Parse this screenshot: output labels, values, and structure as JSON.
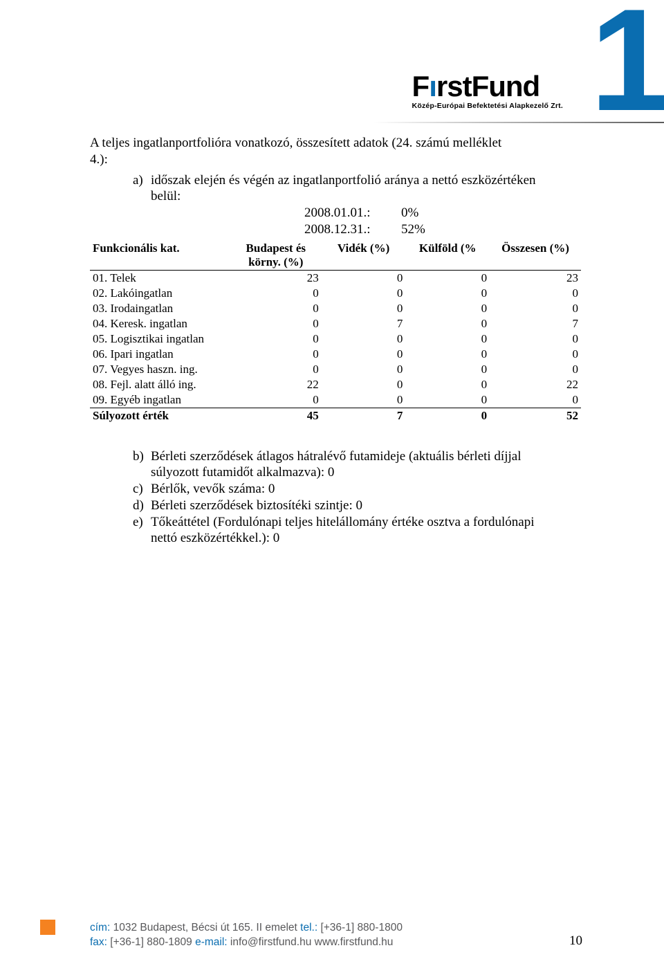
{
  "title": {
    "line1": "A teljes ingatlanportfolióra vonatkozó, összesített adatok (24. számú melléklet",
    "line2": "4.):"
  },
  "a_item": {
    "marker": "a)",
    "line1": "időszak elején és végén az ingatlanportfolió aránya a nettó eszközértéken",
    "line2": "belül:"
  },
  "a_values": [
    {
      "label": "2008.01.01.:",
      "val": "0%"
    },
    {
      "label": "2008.12.31.:",
      "val": "52%"
    }
  ],
  "table": {
    "headers": {
      "cat": "Funkcionális kat.",
      "bp1": "Budapest és",
      "bp2": "körny. (%)",
      "videk": "Vidék (%)",
      "kulfold": "Külföld (%",
      "ossz": "Összesen (%)"
    },
    "rows": [
      {
        "label": "01. Telek",
        "v": [
          "23",
          "0",
          "0",
          "23"
        ]
      },
      {
        "label": "02. Lakóingatlan",
        "v": [
          "0",
          "0",
          "0",
          "0"
        ]
      },
      {
        "label": "03. Irodaingatlan",
        "v": [
          "0",
          "0",
          "0",
          "0"
        ]
      },
      {
        "label": "04. Keresk. ingatlan",
        "v": [
          "0",
          "7",
          "0",
          "7"
        ]
      },
      {
        "label": "05. Logisztikai ingatlan",
        "v": [
          "0",
          "0",
          "0",
          "0"
        ]
      },
      {
        "label": "06. Ipari ingatlan",
        "v": [
          "0",
          "0",
          "0",
          "0"
        ]
      },
      {
        "label": "07. Vegyes haszn. ing.",
        "v": [
          "0",
          "0",
          "0",
          "0"
        ]
      },
      {
        "label": "08. Fejl. alatt álló ing.",
        "v": [
          "22",
          "0",
          "0",
          "22"
        ]
      },
      {
        "label": "09. Egyéb ingatlan",
        "v": [
          "0",
          "0",
          "0",
          "0"
        ]
      }
    ],
    "total": {
      "label": "Súlyozott érték",
      "v": [
        "45",
        "7",
        "0",
        "52"
      ]
    }
  },
  "b_list": [
    {
      "marker": "b)",
      "lines": [
        "Bérleti szerződések átlagos hátralévő futamideje (aktuális bérleti díjjal",
        "súlyozott futamidőt alkalmazva): 0"
      ]
    },
    {
      "marker": "c)",
      "lines": [
        "Bérlők, vevők száma: 0"
      ]
    },
    {
      "marker": "d)",
      "lines": [
        "Bérleti szerződések biztosítéki szintje: 0"
      ]
    },
    {
      "marker": "e)",
      "lines": [
        "Tőkeáttétel (Fordulónapi teljes hitelállomány értéke osztva a fordulónapi",
        "nettó eszközértékkel.): 0"
      ]
    }
  ],
  "logo": {
    "main_f": "F",
    "main_i": "ı",
    "main_rst": "rst",
    "main_fund": "Fund",
    "sub": "Közép-Európai Befektetési Alapkezelő Zrt."
  },
  "footer": {
    "line1_label": "cím:",
    "line1_addr": " 1032 Budapest, Bécsi út 165. II emelet ",
    "line1_tel_label": "tel.:",
    "line1_tel": " [+36-1] 880-1800",
    "line2_fax_label": "fax:",
    "line2_fax": " [+36-1] 880-1809 ",
    "line2_email_label": "e-mail:",
    "line2_email": " info@firstfund.hu www.firstfund.hu",
    "pagenum": "10"
  },
  "colors": {
    "blue": "#0a6db0",
    "orange": "#f58220",
    "footer_gray": "#58585a"
  }
}
